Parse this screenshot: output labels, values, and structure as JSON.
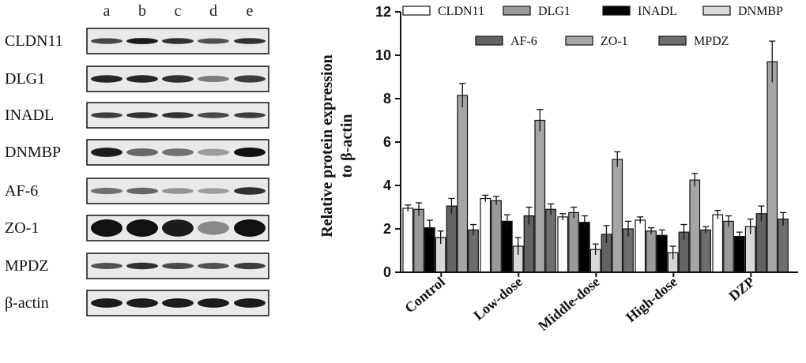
{
  "blot": {
    "lanes": [
      "a",
      "b",
      "c",
      "d",
      "e"
    ],
    "proteins": [
      "CLDN11",
      "DLG1",
      "INADL",
      "DNMBP",
      "AF-6",
      "ZO-1",
      "MPDZ",
      "β-actin"
    ]
  },
  "chart_data": {
    "type": "bar",
    "categories": [
      "Control",
      "Low-dose",
      "Middle-dose",
      "High-dose",
      "DZP"
    ],
    "ylabel_line1": "Relative protein expression",
    "ylabel_line2": "to β-actin",
    "ylim": [
      0,
      12
    ],
    "yticks": [
      0,
      2,
      4,
      6,
      8,
      10,
      12
    ],
    "legend_placement": "top",
    "series": [
      {
        "name": "CLDN11",
        "color": "#ffffff",
        "values": [
          2.95,
          3.4,
          2.55,
          2.4,
          2.65
        ],
        "errors": [
          0.15,
          0.15,
          0.15,
          0.15,
          0.2
        ]
      },
      {
        "name": "DLG1",
        "color": "#9a9a9a",
        "values": [
          2.9,
          3.3,
          2.75,
          1.9,
          2.35
        ],
        "errors": [
          0.3,
          0.2,
          0.25,
          0.15,
          0.25
        ]
      },
      {
        "name": "INADL",
        "color": "#000000",
        "values": [
          2.05,
          2.35,
          2.3,
          1.7,
          1.65
        ],
        "errors": [
          0.35,
          0.3,
          0.3,
          0.25,
          0.2
        ]
      },
      {
        "name": "DNMBP",
        "color": "#d8d8d8",
        "values": [
          1.6,
          1.2,
          1.05,
          0.9,
          2.1
        ],
        "errors": [
          0.3,
          0.4,
          0.25,
          0.3,
          0.35
        ]
      },
      {
        "name": "AF-6",
        "color": "#636363",
        "values": [
          3.05,
          2.6,
          1.75,
          1.85,
          2.7
        ],
        "errors": [
          0.35,
          0.4,
          0.4,
          0.35,
          0.35
        ]
      },
      {
        "name": "ZO-1",
        "color": "#a6a6a6",
        "values": [
          8.15,
          7.0,
          5.2,
          4.25,
          9.7
        ],
        "errors": [
          0.55,
          0.5,
          0.35,
          0.3,
          0.95
        ]
      },
      {
        "name": "MPDZ",
        "color": "#6e6e6e",
        "values": [
          1.95,
          2.9,
          2.0,
          1.95,
          2.45
        ],
        "errors": [
          0.25,
          0.25,
          0.35,
          0.15,
          0.3
        ]
      }
    ]
  }
}
